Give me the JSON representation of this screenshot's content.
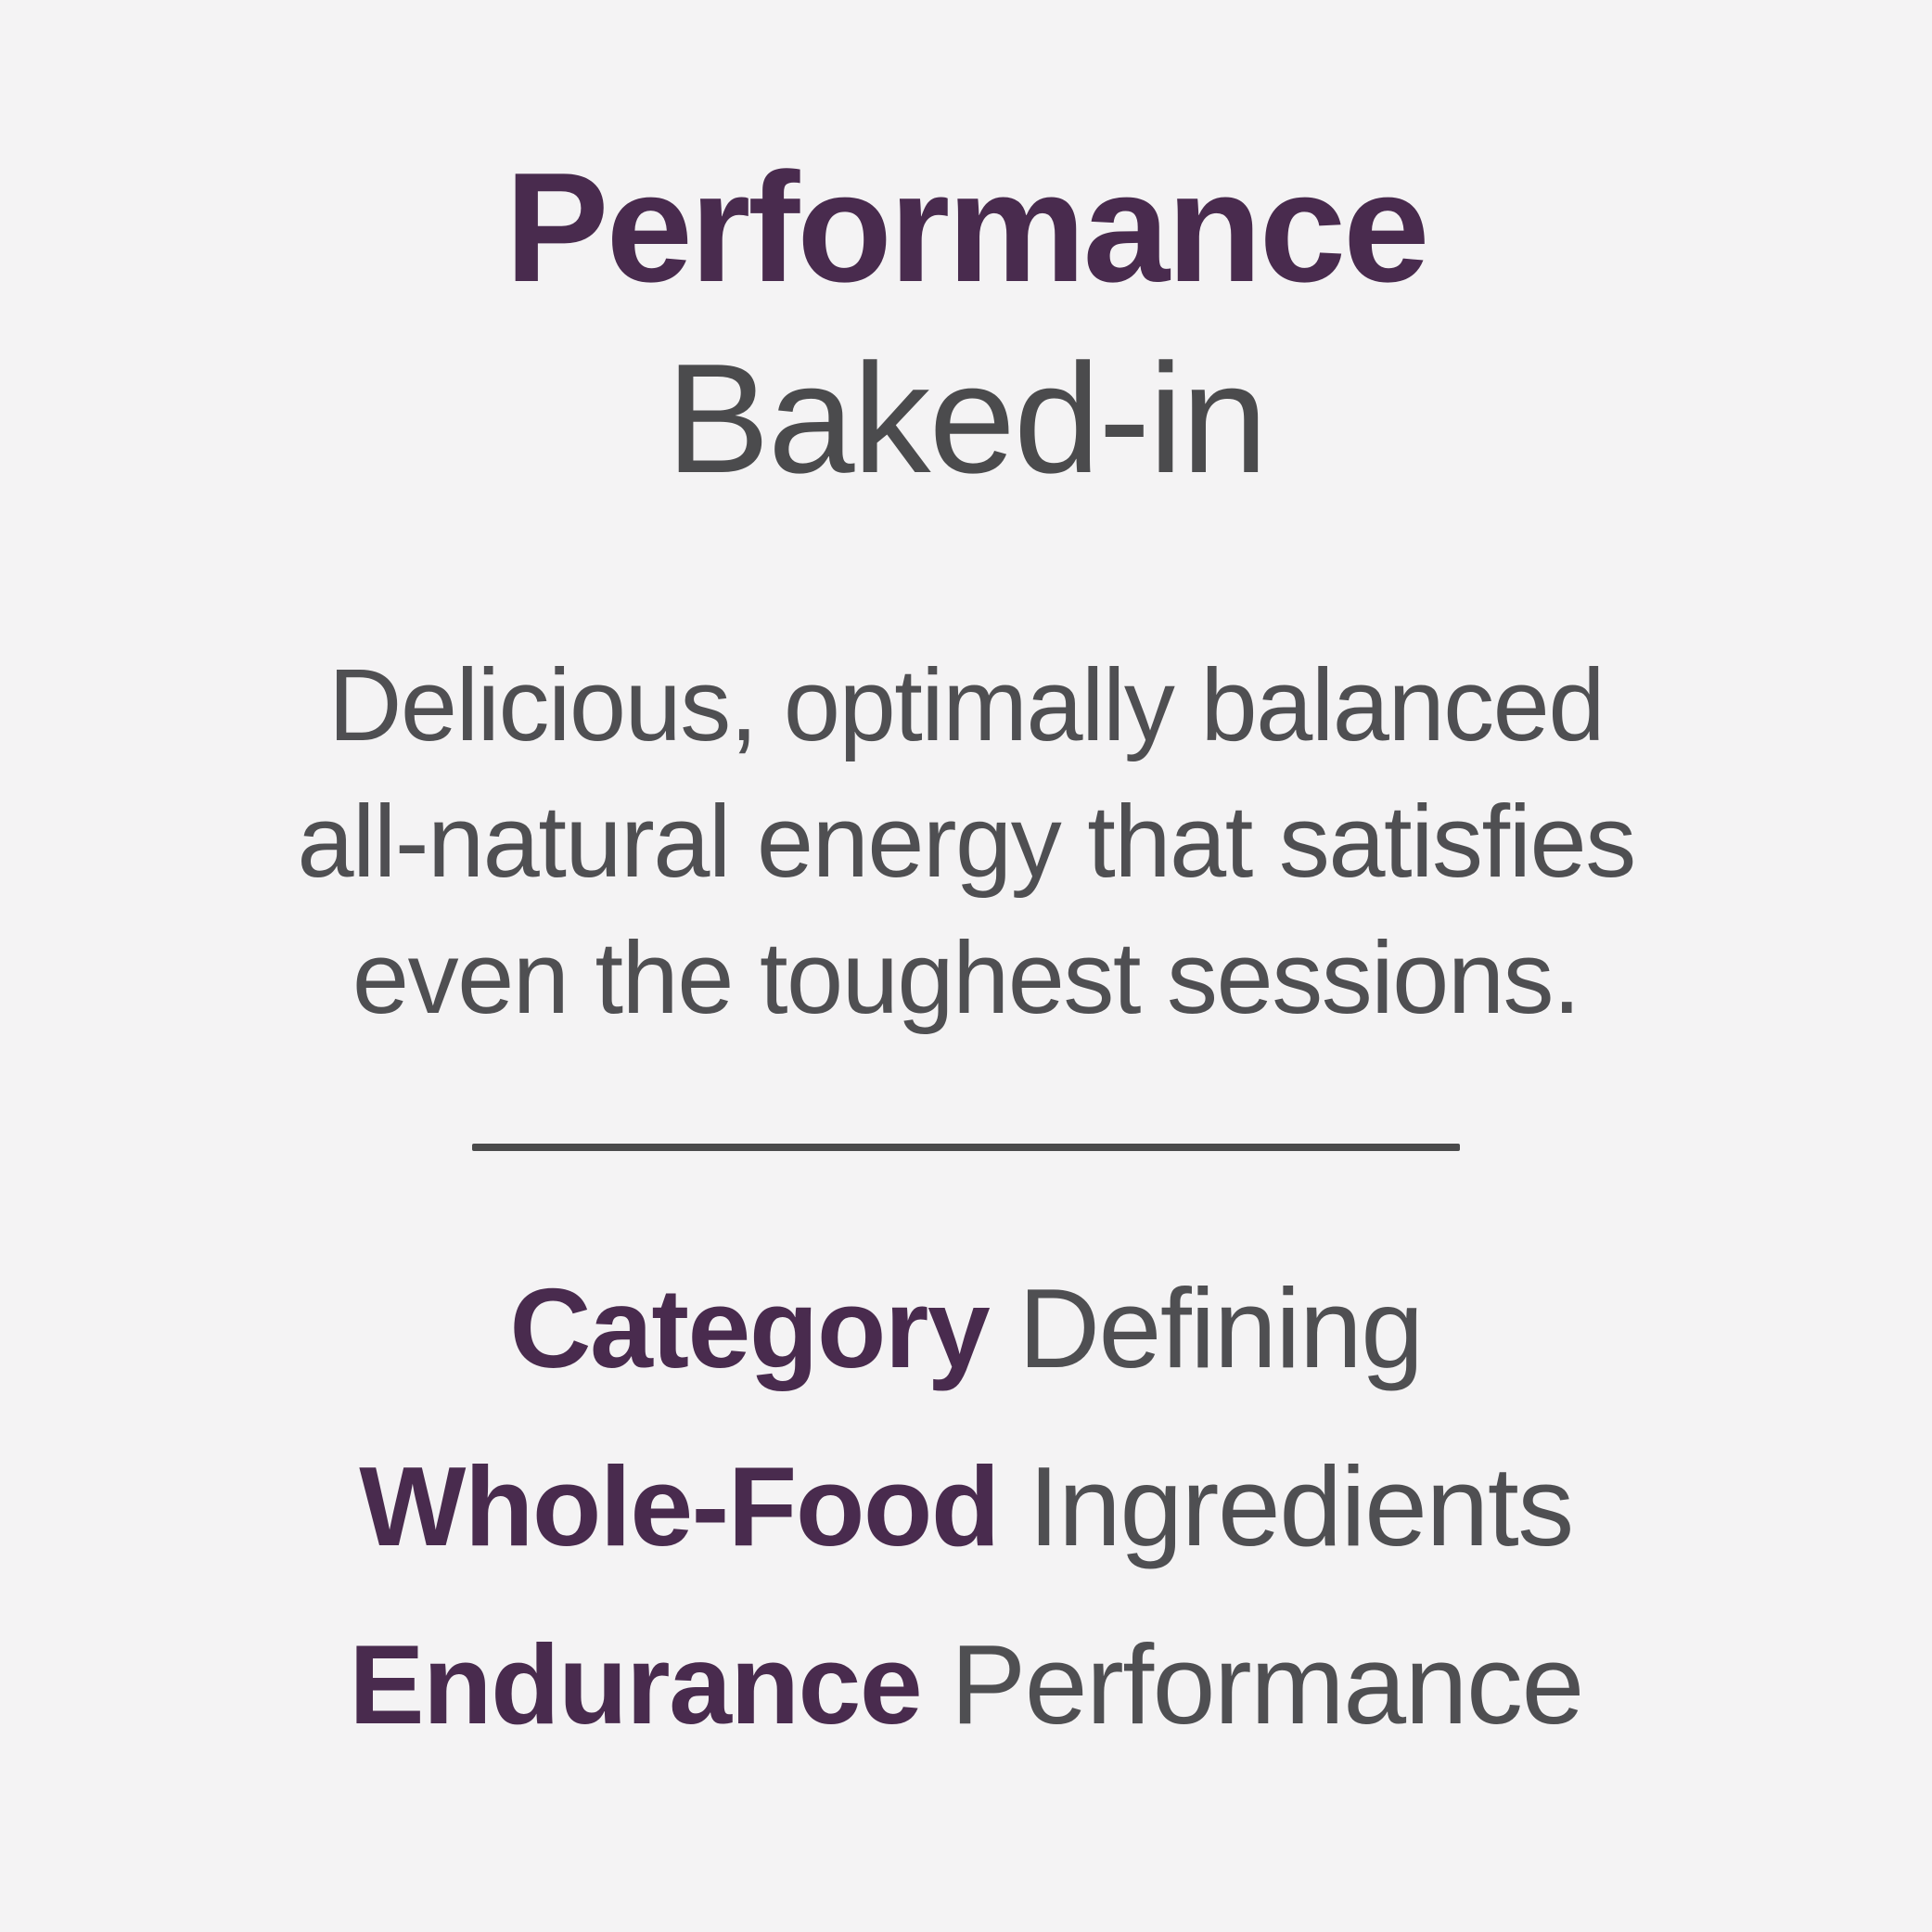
{
  "page": {
    "background_color": "#f4f3f4",
    "accent_color": "#492b4e",
    "heading_gray_color": "#4b4b4d",
    "body_gray_color": "#4f4f52",
    "divider_color": "#4a4a4b"
  },
  "header": {
    "title_accent": "Performance",
    "title_sub": "Baked-in"
  },
  "description": {
    "full": "Delicious, optimally balanced all-natural energy that satisfies even the toughest sessions.",
    "lines": [
      "Delicious, optimally balanced",
      "all-natural energy that satisfies",
      "even the toughest sessions."
    ]
  },
  "features": [
    {
      "highlight": "Category",
      "rest": "Defining"
    },
    {
      "highlight": "Whole-Food",
      "rest": "Ingredients"
    },
    {
      "highlight": "Endurance",
      "rest": "Performance"
    }
  ]
}
